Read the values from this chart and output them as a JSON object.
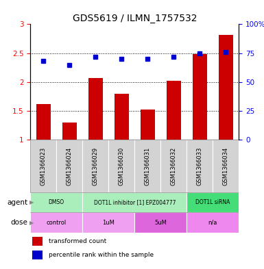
{
  "title": "GDS5619 / ILMN_1757532",
  "samples": [
    "GSM1366023",
    "GSM1366024",
    "GSM1366029",
    "GSM1366030",
    "GSM1366031",
    "GSM1366032",
    "GSM1366033",
    "GSM1366034"
  ],
  "bar_values": [
    1.62,
    1.3,
    2.07,
    1.8,
    1.52,
    2.02,
    2.48,
    2.82
  ],
  "dot_values_pct": [
    68,
    65,
    72,
    70,
    70,
    72,
    75,
    76
  ],
  "bar_color": "#cc0000",
  "dot_color": "#0000cc",
  "ylim_left": [
    1,
    3
  ],
  "ylim_right": [
    0,
    100
  ],
  "yticks_left": [
    1,
    1.5,
    2,
    2.5,
    3
  ],
  "yticks_right": [
    0,
    25,
    50,
    75,
    100
  ],
  "ytick_labels_right": [
    "0",
    "25",
    "50",
    "75",
    "100%"
  ],
  "grid_values": [
    1.5,
    2.0,
    2.5
  ],
  "agent_groups": [
    {
      "label": "DMSO",
      "start": 0,
      "end": 2,
      "color": "#aaeebb"
    },
    {
      "label": "DOT1L inhibitor [1] EPZ004777",
      "start": 2,
      "end": 6,
      "color": "#aaeebb"
    },
    {
      "label": "DOT1L siRNA",
      "start": 6,
      "end": 8,
      "color": "#44dd77"
    }
  ],
  "dose_groups": [
    {
      "label": "control",
      "start": 0,
      "end": 2,
      "color": "#f0a0f0"
    },
    {
      "label": "1uM",
      "start": 2,
      "end": 4,
      "color": "#f0a0f0"
    },
    {
      "label": "5uM",
      "start": 4,
      "end": 6,
      "color": "#dd66dd"
    },
    {
      "label": "n/a",
      "start": 6,
      "end": 8,
      "color": "#ee88ee"
    }
  ],
  "legend_bar_label": "transformed count",
  "legend_dot_label": "percentile rank within the sample",
  "agent_label": "agent",
  "dose_label": "dose",
  "sample_bg_color": "#d3d3d3",
  "title_fontsize": 10,
  "tick_fontsize": 7.5
}
